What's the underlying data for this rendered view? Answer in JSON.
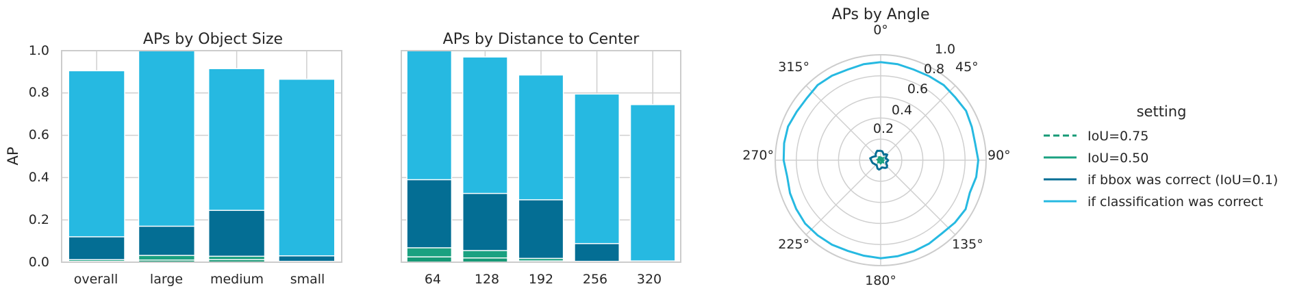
{
  "colors": {
    "iou75": "#169a76",
    "iou50": "#1aa180",
    "bbox": "#046e94",
    "cls": "#26b9e1",
    "grid": "#cfcfcf",
    "spine": "#cccccc"
  },
  "legend": {
    "title": "setting",
    "items": [
      {
        "label": "IoU=0.75",
        "key": "iou75",
        "dashed": true
      },
      {
        "label": "IoU=0.50",
        "key": "iou50",
        "dashed": false
      },
      {
        "label": "if bbox was correct (IoU=0.1)",
        "key": "bbox",
        "dashed": false
      },
      {
        "label": "if classification was correct",
        "key": "cls",
        "dashed": false
      }
    ]
  },
  "chart_data": [
    {
      "type": "bar",
      "title": "APs by Object Size",
      "ylabel": "AP",
      "ylim": [
        0,
        1.0
      ],
      "yticks": [
        0.0,
        0.2,
        0.4,
        0.6,
        0.8,
        1.0
      ],
      "ytick_labels": [
        "0.0",
        "0.2",
        "0.4",
        "0.6",
        "0.8",
        "1.0"
      ],
      "categories": [
        "overall",
        "large",
        "medium",
        "small"
      ],
      "series": [
        {
          "key": "cls",
          "values": [
            0.905,
            1.0,
            0.915,
            0.865
          ]
        },
        {
          "key": "bbox",
          "values": [
            0.12,
            0.17,
            0.245,
            0.03
          ]
        },
        {
          "key": "iou50",
          "values": [
            0.012,
            0.032,
            0.028,
            0.004
          ]
        },
        {
          "key": "iou75",
          "values": [
            0.004,
            0.01,
            0.012,
            0.001
          ]
        }
      ]
    },
    {
      "type": "bar",
      "title": "APs by Distance to Center",
      "ylim": [
        0,
        1.0
      ],
      "categories": [
        "64",
        "128",
        "192",
        "256",
        "320"
      ],
      "series": [
        {
          "key": "cls",
          "values": [
            1.0,
            0.97,
            0.885,
            0.795,
            0.745
          ]
        },
        {
          "key": "bbox",
          "values": [
            0.39,
            0.325,
            0.295,
            0.088,
            0.006
          ]
        },
        {
          "key": "iou50",
          "values": [
            0.068,
            0.055,
            0.018,
            0.004,
            0.001
          ]
        },
        {
          "key": "iou75",
          "values": [
            0.025,
            0.02,
            0.006,
            0.002,
            0.0
          ]
        }
      ]
    },
    {
      "type": "line",
      "polar": true,
      "title": "APs by Angle",
      "rlim": [
        0,
        1.0
      ],
      "rticks": [
        0.2,
        0.4,
        0.6,
        0.8,
        1.0
      ],
      "rtick_labels": [
        "0.2",
        "0.4",
        "0.6",
        "0.8",
        "1.0"
      ],
      "angle_labels": [
        "0°",
        "45°",
        "90°",
        "135°",
        "180°",
        "225°",
        "270°",
        "315°"
      ],
      "x": [
        0,
        10,
        20,
        30,
        40,
        50,
        60,
        70,
        80,
        90,
        100,
        110,
        120,
        130,
        140,
        150,
        160,
        170,
        180,
        190,
        200,
        210,
        220,
        230,
        240,
        250,
        260,
        270,
        280,
        290,
        300,
        310,
        320,
        330,
        340,
        350
      ],
      "series": [
        {
          "key": "cls",
          "values": [
            0.93,
            0.925,
            0.915,
            0.92,
            0.93,
            0.925,
            0.935,
            0.92,
            0.91,
            0.925,
            0.92,
            0.9,
            0.93,
            0.92,
            0.905,
            0.915,
            0.92,
            0.925,
            0.93,
            0.92,
            0.915,
            0.925,
            0.93,
            0.935,
            0.925,
            0.915,
            0.9,
            0.92,
            0.93,
            0.935,
            0.92,
            0.915,
            0.93,
            0.925,
            0.915,
            0.925
          ]
        },
        {
          "key": "bbox",
          "values": [
            0.09,
            0.085,
            0.07,
            0.06,
            0.075,
            0.08,
            0.06,
            0.05,
            0.06,
            0.07,
            0.065,
            0.055,
            0.06,
            0.08,
            0.09,
            0.085,
            0.075,
            0.07,
            0.08,
            0.09,
            0.085,
            0.07,
            0.06,
            0.065,
            0.07,
            0.08,
            0.085,
            0.09,
            0.1,
            0.085,
            0.07,
            0.06,
            0.075,
            0.085,
            0.095,
            0.09
          ]
        },
        {
          "key": "iou50",
          "values": [
            0.03,
            0.025,
            0.02,
            0.02,
            0.025,
            0.03,
            0.02,
            0.015,
            0.02,
            0.025,
            0.02,
            0.02,
            0.025,
            0.03,
            0.025,
            0.02,
            0.02,
            0.025,
            0.03,
            0.025,
            0.02,
            0.02,
            0.025,
            0.03,
            0.025,
            0.02,
            0.02,
            0.025,
            0.03,
            0.025,
            0.02,
            0.02,
            0.025,
            0.03,
            0.025,
            0.03
          ]
        },
        {
          "key": "iou75",
          "values": [
            0.01,
            0.01,
            0.008,
            0.008,
            0.01,
            0.012,
            0.008,
            0.006,
            0.008,
            0.01,
            0.008,
            0.008,
            0.01,
            0.012,
            0.01,
            0.008,
            0.008,
            0.01,
            0.012,
            0.01,
            0.008,
            0.008,
            0.01,
            0.012,
            0.01,
            0.008,
            0.008,
            0.01,
            0.012,
            0.01,
            0.008,
            0.008,
            0.01,
            0.012,
            0.01,
            0.01
          ]
        }
      ]
    }
  ]
}
